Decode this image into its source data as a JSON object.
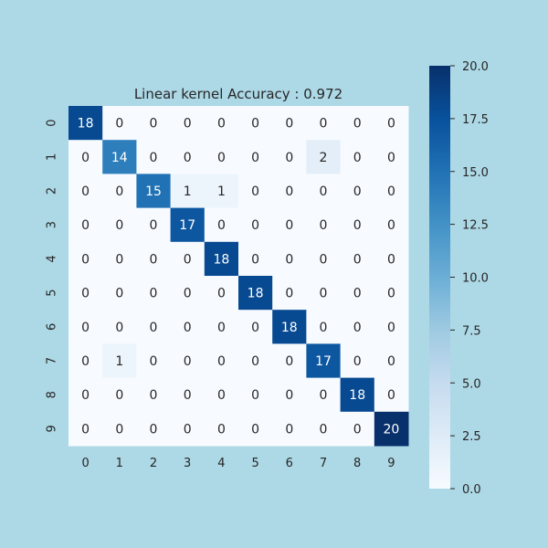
{
  "chart_data": {
    "type": "heatmap",
    "title": "Linear kernel Accuracy : 0.972",
    "xlabel": "",
    "ylabel": "",
    "x_ticks": [
      "0",
      "1",
      "2",
      "3",
      "4",
      "5",
      "6",
      "7",
      "8",
      "9"
    ],
    "y_ticks": [
      "0",
      "1",
      "2",
      "3",
      "4",
      "5",
      "6",
      "7",
      "8",
      "9"
    ],
    "matrix": [
      [
        18,
        0,
        0,
        0,
        0,
        0,
        0,
        0,
        0,
        0
      ],
      [
        0,
        14,
        0,
        0,
        0,
        0,
        0,
        2,
        0,
        0
      ],
      [
        0,
        0,
        15,
        1,
        1,
        0,
        0,
        0,
        0,
        0
      ],
      [
        0,
        0,
        0,
        17,
        0,
        0,
        0,
        0,
        0,
        0
      ],
      [
        0,
        0,
        0,
        0,
        18,
        0,
        0,
        0,
        0,
        0
      ],
      [
        0,
        0,
        0,
        0,
        0,
        18,
        0,
        0,
        0,
        0
      ],
      [
        0,
        0,
        0,
        0,
        0,
        0,
        18,
        0,
        0,
        0
      ],
      [
        0,
        1,
        0,
        0,
        0,
        0,
        0,
        17,
        0,
        0
      ],
      [
        0,
        0,
        0,
        0,
        0,
        0,
        0,
        0,
        18,
        0
      ],
      [
        0,
        0,
        0,
        0,
        0,
        0,
        0,
        0,
        0,
        20
      ]
    ],
    "colormap": "Blues",
    "vmin": 0,
    "vmax": 20,
    "colorbar_ticks": [
      "0.0",
      "2.5",
      "5.0",
      "7.5",
      "10.0",
      "12.5",
      "15.0",
      "17.5",
      "20.0"
    ],
    "grid": false,
    "background_color": "#add8e6"
  }
}
